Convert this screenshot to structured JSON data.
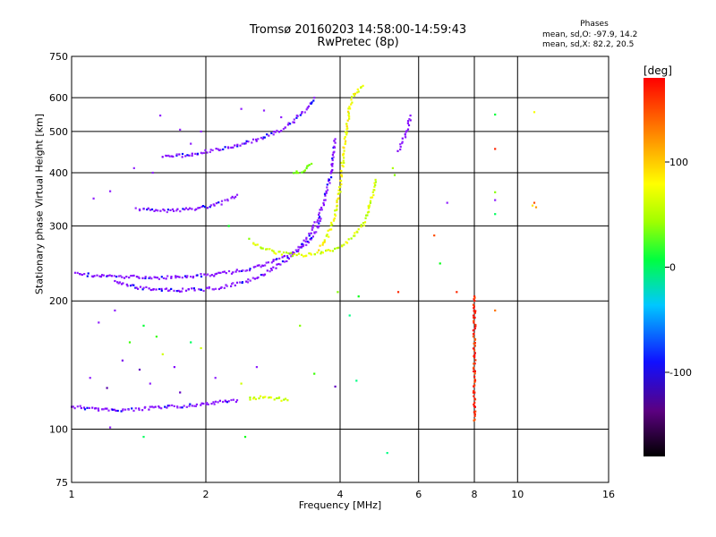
{
  "header": {
    "title": "Tromsø 20160203 14:58:00-14:59:43",
    "subtitle": "RwPretec (8p)"
  },
  "phase_info": {
    "heading": "Phases",
    "line_o": "mean, sd,O: -97.9, 14.2",
    "line_x": "mean, sd,X: 82.2, 20.5"
  },
  "colorbar": {
    "unit": "[deg]",
    "range": [
      -180,
      180
    ],
    "ticks": [
      100,
      0,
      -100
    ]
  },
  "chart_data": {
    "type": "scatter",
    "title": "Tromsø 20160203 14:58:00-14:59:43",
    "subtitle": "RwPretec (8p)",
    "xlabel": "Frequency [MHz]",
    "ylabel": "Stationary phase Virtual Height [km]",
    "xscale": "log",
    "yscale": "log",
    "xlim": [
      1,
      16
    ],
    "ylim": [
      75,
      750
    ],
    "xticks": [
      1,
      2,
      4,
      6,
      8,
      10,
      16
    ],
    "yticks": [
      75,
      100,
      200,
      300,
      400,
      500,
      600,
      750
    ],
    "grid": true,
    "color_meaning": "phase [deg]",
    "traces": [
      {
        "points": [
          [
            1.0,
            113
          ],
          [
            1.1,
            112
          ],
          [
            1.2,
            111
          ],
          [
            1.35,
            111
          ],
          [
            1.5,
            112
          ],
          [
            1.7,
            113
          ],
          [
            1.9,
            114
          ],
          [
            2.05,
            115
          ],
          [
            2.2,
            116
          ],
          [
            2.35,
            117
          ]
        ],
        "phase": -100
      },
      {
        "points": [
          [
            2.5,
            118
          ],
          [
            2.7,
            119
          ],
          [
            2.9,
            118
          ],
          [
            3.05,
            117
          ]
        ],
        "phase": 100
      },
      {
        "points": [
          [
            1.02,
            232
          ],
          [
            1.15,
            229
          ],
          [
            1.3,
            228
          ],
          [
            1.5,
            227
          ],
          [
            1.7,
            227
          ],
          [
            1.9,
            229
          ],
          [
            2.1,
            231
          ],
          [
            2.3,
            234
          ],
          [
            2.5,
            238
          ],
          [
            2.7,
            243
          ],
          [
            2.9,
            250
          ],
          [
            3.1,
            258
          ],
          [
            3.3,
            268
          ],
          [
            3.45,
            280
          ],
          [
            3.55,
            295
          ],
          [
            3.62,
            312
          ]
        ],
        "phase": -100
      },
      {
        "points": [
          [
            1.25,
            222
          ],
          [
            1.4,
            215
          ],
          [
            1.6,
            213
          ],
          [
            1.8,
            212
          ],
          [
            2.0,
            213
          ],
          [
            2.2,
            216
          ],
          [
            2.45,
            222
          ],
          [
            2.7,
            231
          ],
          [
            2.95,
            245
          ],
          [
            3.2,
            262
          ],
          [
            3.4,
            285
          ],
          [
            3.55,
            310
          ],
          [
            3.68,
            340
          ],
          [
            3.78,
            380
          ],
          [
            3.85,
            430
          ],
          [
            3.9,
            480
          ]
        ],
        "phase": -100
      },
      {
        "points": [
          [
            1.4,
            330
          ],
          [
            1.55,
            326
          ],
          [
            1.7,
            326
          ],
          [
            1.9,
            330
          ],
          [
            2.1,
            336
          ],
          [
            2.25,
            345
          ],
          [
            2.35,
            355
          ]
        ],
        "phase": -100
      },
      {
        "points": [
          [
            1.6,
            435
          ],
          [
            1.8,
            440
          ],
          [
            2.0,
            448
          ],
          [
            2.3,
            460
          ],
          [
            2.6,
            478
          ],
          [
            2.9,
            500
          ],
          [
            3.15,
            528
          ],
          [
            3.35,
            560
          ],
          [
            3.5,
            600
          ]
        ],
        "phase": -100
      },
      {
        "points": [
          [
            2.55,
            272
          ],
          [
            2.8,
            262
          ],
          [
            3.0,
            258
          ],
          [
            3.3,
            256
          ],
          [
            3.6,
            258
          ],
          [
            3.9,
            265
          ],
          [
            4.1,
            272
          ],
          [
            4.3,
            284
          ],
          [
            4.5,
            302
          ],
          [
            4.62,
            325
          ],
          [
            4.72,
            352
          ],
          [
            4.8,
            385
          ]
        ],
        "phase": 100
      },
      {
        "points": [
          [
            3.15,
            400
          ],
          [
            3.3,
            405
          ],
          [
            3.45,
            420
          ]
        ],
        "phase": 80
      },
      {
        "points": [
          [
            3.6,
            265
          ],
          [
            3.75,
            285
          ],
          [
            3.9,
            320
          ],
          [
            4.0,
            370
          ],
          [
            4.05,
            420
          ],
          [
            4.1,
            470
          ],
          [
            4.15,
            520
          ],
          [
            4.2,
            570
          ],
          [
            4.3,
            610
          ],
          [
            4.4,
            630
          ],
          [
            4.5,
            640
          ]
        ],
        "phase": 110
      },
      {
        "points": [
          [
            5.4,
            450
          ],
          [
            5.5,
            470
          ],
          [
            5.6,
            490
          ],
          [
            5.7,
            520
          ],
          [
            5.75,
            545
          ]
        ],
        "phase": -105
      },
      {
        "points": [
          [
            8.0,
            105
          ],
          [
            8.0,
            125
          ],
          [
            8.0,
            145
          ],
          [
            8.0,
            165
          ],
          [
            8.0,
            185
          ],
          [
            8.0,
            205
          ]
        ],
        "phase": 170
      }
    ],
    "points": [
      {
        "x": 1.12,
        "y": 348,
        "phase": -100
      },
      {
        "x": 1.22,
        "y": 362,
        "phase": -100
      },
      {
        "x": 1.38,
        "y": 410,
        "phase": -95
      },
      {
        "x": 1.52,
        "y": 400,
        "phase": -100
      },
      {
        "x": 1.58,
        "y": 545,
        "phase": -100
      },
      {
        "x": 1.75,
        "y": 505,
        "phase": -95
      },
      {
        "x": 1.85,
        "y": 468,
        "phase": -100
      },
      {
        "x": 1.95,
        "y": 500,
        "phase": -100
      },
      {
        "x": 2.4,
        "y": 565,
        "phase": -100
      },
      {
        "x": 2.7,
        "y": 560,
        "phase": -100
      },
      {
        "x": 2.95,
        "y": 540,
        "phase": -100
      },
      {
        "x": 3.2,
        "y": 545,
        "phase": -100
      },
      {
        "x": 1.15,
        "y": 178,
        "phase": -100
      },
      {
        "x": 1.25,
        "y": 190,
        "phase": -100
      },
      {
        "x": 1.35,
        "y": 160,
        "phase": 60
      },
      {
        "x": 1.45,
        "y": 175,
        "phase": 30
      },
      {
        "x": 1.55,
        "y": 165,
        "phase": 60
      },
      {
        "x": 1.3,
        "y": 145,
        "phase": -120
      },
      {
        "x": 1.42,
        "y": 138,
        "phase": -140
      },
      {
        "x": 1.6,
        "y": 150,
        "phase": 100
      },
      {
        "x": 1.7,
        "y": 140,
        "phase": -110
      },
      {
        "x": 1.85,
        "y": 160,
        "phase": 20
      },
      {
        "x": 1.95,
        "y": 155,
        "phase": 100
      },
      {
        "x": 1.1,
        "y": 132,
        "phase": -100
      },
      {
        "x": 1.2,
        "y": 125,
        "phase": -150
      },
      {
        "x": 1.5,
        "y": 128,
        "phase": -100
      },
      {
        "x": 1.75,
        "y": 122,
        "phase": -140
      },
      {
        "x": 2.1,
        "y": 132,
        "phase": -100
      },
      {
        "x": 2.4,
        "y": 128,
        "phase": 100
      },
      {
        "x": 2.6,
        "y": 140,
        "phase": -100
      },
      {
        "x": 1.22,
        "y": 101,
        "phase": -100
      },
      {
        "x": 1.45,
        "y": 96,
        "phase": 20
      },
      {
        "x": 2.45,
        "y": 96,
        "phase": 40
      },
      {
        "x": 5.1,
        "y": 88,
        "phase": 10
      },
      {
        "x": 3.5,
        "y": 135,
        "phase": 60
      },
      {
        "x": 3.9,
        "y": 126,
        "phase": -140
      },
      {
        "x": 4.35,
        "y": 130,
        "phase": 10
      },
      {
        "x": 4.2,
        "y": 185,
        "phase": 10
      },
      {
        "x": 4.4,
        "y": 205,
        "phase": 40
      },
      {
        "x": 3.95,
        "y": 210,
        "phase": 80
      },
      {
        "x": 6.5,
        "y": 285,
        "phase": 160
      },
      {
        "x": 6.7,
        "y": 245,
        "phase": 40
      },
      {
        "x": 5.4,
        "y": 210,
        "phase": 170
      },
      {
        "x": 7.3,
        "y": 210,
        "phase": 170
      },
      {
        "x": 6.95,
        "y": 340,
        "phase": -100
      },
      {
        "x": 8.9,
        "y": 548,
        "phase": 30
      },
      {
        "x": 8.9,
        "y": 455,
        "phase": 170
      },
      {
        "x": 8.9,
        "y": 360,
        "phase": 80
      },
      {
        "x": 8.9,
        "y": 345,
        "phase": -100
      },
      {
        "x": 8.9,
        "y": 320,
        "phase": 20
      },
      {
        "x": 8.9,
        "y": 190,
        "phase": 150
      },
      {
        "x": 10.9,
        "y": 555,
        "phase": 110
      },
      {
        "x": 10.9,
        "y": 340,
        "phase": 160
      },
      {
        "x": 10.8,
        "y": 335,
        "phase": 120
      },
      {
        "x": 11.0,
        "y": 332,
        "phase": 140
      },
      {
        "x": 5.3,
        "y": 395,
        "phase": 80
      },
      {
        "x": 5.25,
        "y": 410,
        "phase": 90
      },
      {
        "x": 3.25,
        "y": 175,
        "phase": 80
      },
      {
        "x": 2.25,
        "y": 300,
        "phase": 40
      },
      {
        "x": 2.5,
        "y": 280,
        "phase": 80
      }
    ]
  }
}
